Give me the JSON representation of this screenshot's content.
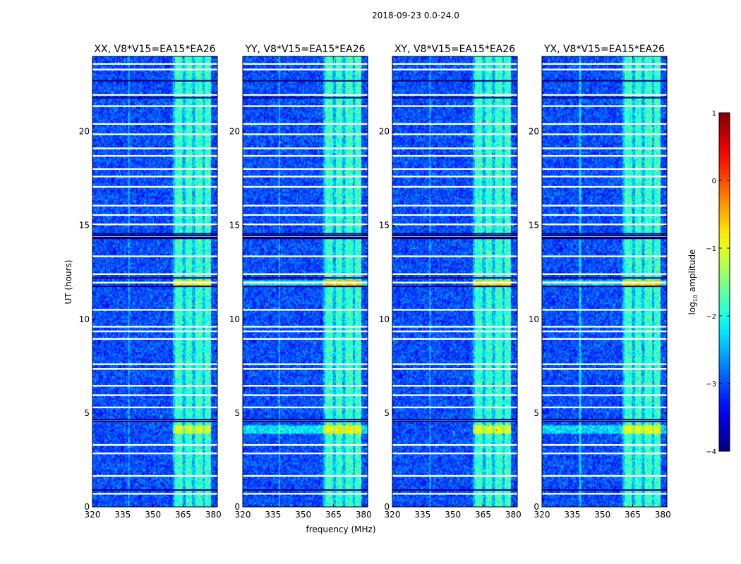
{
  "chart_data": {
    "type": "heatmap",
    "suptitle": "2018-09-23 0.0-24.0",
    "xlabel": "frequency (MHz)",
    "ylabel": "UT (hours)",
    "xlim": [
      320,
      382
    ],
    "ylim": [
      0,
      24
    ],
    "xticks": [
      320,
      335,
      350,
      365,
      380
    ],
    "yticks": [
      0,
      5,
      10,
      15,
      20
    ],
    "colorbar": {
      "label": "log₁₀ amplitude",
      "label_base": "log",
      "label_sub": "10",
      "label_rest": " amplitude",
      "colormap": "jet",
      "range": [
        -4,
        1
      ],
      "ticks": [
        1,
        0,
        -1,
        -2,
        -3,
        -4
      ],
      "tick_labels": [
        "1",
        "0",
        "−1",
        "−2",
        "−3",
        "−4"
      ]
    },
    "background_log_amplitude": -3.0,
    "rfi_band_mhz": [
      360,
      379
    ],
    "rfi_subbands_mhz": [
      [
        361,
        364.5
      ],
      [
        366,
        369.5
      ],
      [
        371,
        374.5
      ],
      [
        375.5,
        379
      ]
    ],
    "persistent_rfi_log_amplitude": -2.0,
    "bursts": [
      {
        "ut": [
          11.8,
          12.05
        ],
        "log_amplitude": -0.5
      },
      {
        "ut": [
          3.9,
          4.35
        ],
        "log_amplitude": -0.8
      }
    ],
    "flagged_gaps_ut": [
      0.7,
      1.65,
      2.85,
      3.3,
      4.55,
      5.3,
      5.95,
      6.45,
      7.35,
      7.6,
      8.95,
      9.35,
      9.6,
      10.5,
      11.95,
      12.4,
      13.35,
      14.4,
      15.05,
      15.55,
      16.05,
      17.05,
      17.6,
      18.0,
      18.7,
      19.1,
      19.85,
      20.4,
      21.35,
      21.95,
      23.3,
      23.6
    ],
    "dark_rows_ut": [
      0.9,
      4.55,
      4.65,
      11.75,
      12.2,
      14.3,
      14.35,
      14.45,
      14.55,
      21.8,
      22.7
    ],
    "panels": [
      {
        "title": "XX, V8*V15=EA15*EA26",
        "burst_gain": 0.75
      },
      {
        "title": "YY, V8*V15=EA15*EA26",
        "burst_gain": 1.0
      },
      {
        "title": "XY, V8*V15=EA15*EA26",
        "burst_gain": 0.85
      },
      {
        "title": "YX, V8*V15=EA15*EA26",
        "burst_gain": 0.9
      }
    ]
  }
}
